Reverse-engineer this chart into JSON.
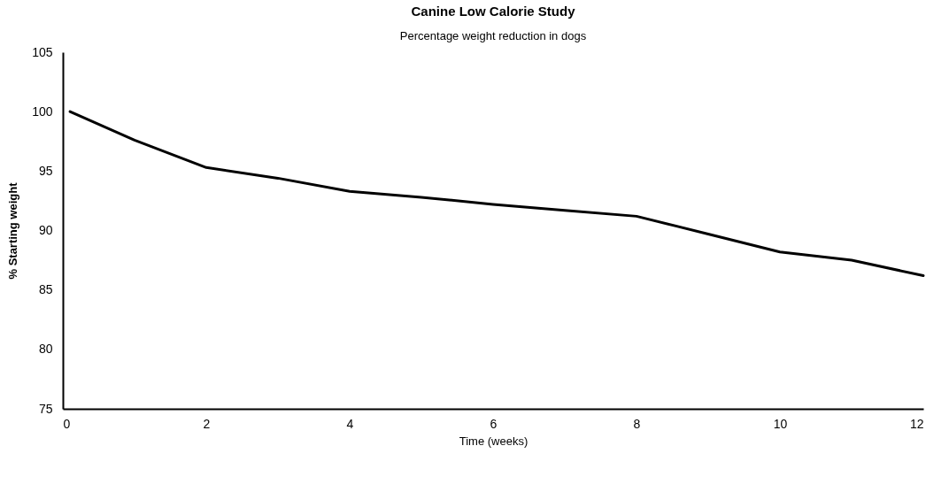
{
  "chart_data": {
    "type": "line",
    "title": "Canine Low Calorie Study",
    "subtitle": "Percentage weight reduction in dogs",
    "xlabel": "Time (weeks)",
    "ylabel": "% Starting weight",
    "x": [
      0.1,
      1,
      2,
      3,
      4,
      5,
      6,
      7,
      8,
      9,
      10,
      11,
      12
    ],
    "series": [
      {
        "color": "#000000",
        "values": [
          100,
          97.6,
          95.3,
          94.4,
          93.3,
          92.8,
          92.2,
          91.7,
          91.2,
          89.7,
          88.2,
          87.5,
          86.2
        ]
      }
    ],
    "xlim": [
      0,
      12
    ],
    "xticks": [
      0,
      2,
      4,
      6,
      8,
      10,
      12
    ],
    "ylim": [
      75,
      105
    ],
    "yticks": [
      75,
      80,
      85,
      90,
      95,
      100,
      105
    ],
    "grid": false,
    "legend": false,
    "marker": "none",
    "line_style": "solid"
  }
}
